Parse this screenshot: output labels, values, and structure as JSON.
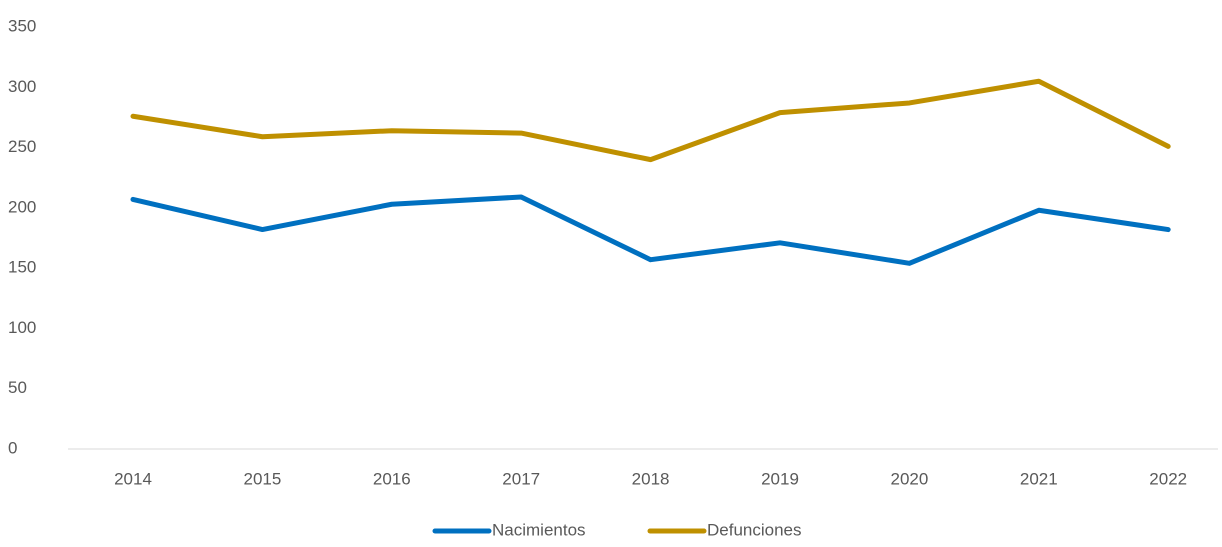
{
  "chart_data": {
    "type": "line",
    "categories": [
      "2014",
      "2015",
      "2016",
      "2017",
      "2018",
      "2019",
      "2020",
      "2021",
      "2022"
    ],
    "series": [
      {
        "name": "Nacimientos",
        "color": "#0070c0",
        "values": [
          207,
          182,
          203,
          209,
          157,
          171,
          154,
          198,
          182
        ]
      },
      {
        "name": "Defunciones",
        "color": "#bf9000",
        "values": [
          276,
          259,
          264,
          262,
          240,
          279,
          287,
          305,
          251
        ]
      }
    ],
    "ylim": [
      0,
      350
    ],
    "yticks": [
      0,
      50,
      100,
      150,
      200,
      250,
      300,
      350
    ],
    "grid": false,
    "legend": "bottom"
  }
}
